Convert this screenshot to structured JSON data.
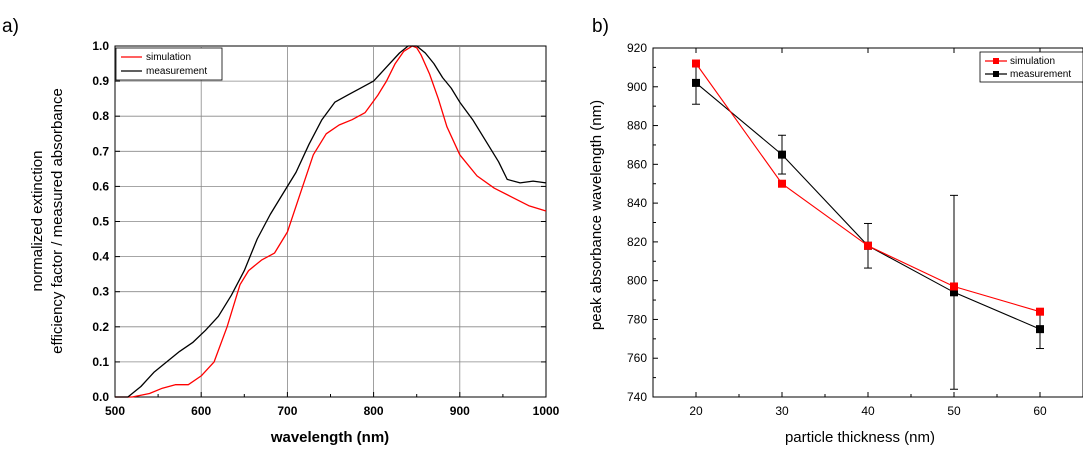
{
  "chart_data": [
    {
      "panel_label": "a)",
      "type": "line",
      "xlabel": "wavelength (nm)",
      "ylabel_lines": [
        "normalized extinction",
        "efficiency factor / measured absorbance"
      ],
      "xlim": [
        500,
        1000
      ],
      "ylim": [
        0.0,
        1.0
      ],
      "xticks": [
        "500",
        "600",
        "700",
        "800",
        "900",
        "1000"
      ],
      "yticks": [
        "0.0",
        "0.1",
        "0.2",
        "0.3",
        "0.4",
        "0.5",
        "0.6",
        "0.7",
        "0.8",
        "0.9",
        "1.0"
      ],
      "grid": true,
      "legend_position": "top-left",
      "series": [
        {
          "name": "simulation",
          "color": "#ff0000",
          "x": [
            500,
            520,
            540,
            555,
            570,
            585,
            600,
            615,
            630,
            645,
            655,
            670,
            685,
            700,
            715,
            730,
            745,
            760,
            775,
            790,
            805,
            815,
            825,
            835,
            845,
            850,
            855,
            865,
            875,
            885,
            900,
            920,
            940,
            960,
            980,
            1000
          ],
          "y": [
            0.0,
            0.0,
            0.01,
            0.025,
            0.035,
            0.035,
            0.06,
            0.1,
            0.2,
            0.32,
            0.36,
            0.39,
            0.41,
            0.47,
            0.58,
            0.69,
            0.75,
            0.775,
            0.79,
            0.81,
            0.86,
            0.9,
            0.95,
            0.985,
            1.0,
            0.995,
            0.975,
            0.92,
            0.85,
            0.77,
            0.69,
            0.63,
            0.595,
            0.57,
            0.545,
            0.53
          ]
        },
        {
          "name": "measurement",
          "color": "#000000",
          "x": [
            500,
            515,
            530,
            545,
            560,
            575,
            590,
            605,
            620,
            635,
            650,
            665,
            680,
            695,
            710,
            725,
            740,
            755,
            770,
            785,
            800,
            815,
            830,
            840,
            850,
            860,
            870,
            880,
            890,
            900,
            915,
            930,
            945,
            955,
            970,
            985,
            1000
          ],
          "y": [
            0.0,
            0.0,
            0.03,
            0.07,
            0.1,
            0.13,
            0.155,
            0.19,
            0.23,
            0.29,
            0.36,
            0.45,
            0.52,
            0.58,
            0.64,
            0.72,
            0.79,
            0.84,
            0.86,
            0.88,
            0.9,
            0.94,
            0.98,
            1.0,
            1.0,
            0.98,
            0.95,
            0.91,
            0.88,
            0.84,
            0.79,
            0.73,
            0.67,
            0.62,
            0.61,
            0.615,
            0.61
          ]
        }
      ]
    },
    {
      "panel_label": "b)",
      "type": "line",
      "xlabel": "particle thickness (nm)",
      "ylabel": "peak absorbance wavelength (nm)",
      "xlim": [
        15,
        65
      ],
      "ylim": [
        740,
        920
      ],
      "xticks": [
        "20",
        "30",
        "40",
        "50",
        "60"
      ],
      "yticks": [
        "740",
        "760",
        "780",
        "800",
        "820",
        "840",
        "860",
        "880",
        "900",
        "920"
      ],
      "grid": false,
      "legend_position": "top-right",
      "series": [
        {
          "name": "simulation",
          "color": "#ff0000",
          "marker": "square",
          "x": [
            20,
            30,
            40,
            50,
            60
          ],
          "y": [
            912,
            850,
            818,
            797,
            784
          ]
        },
        {
          "name": "measurement",
          "color": "#000000",
          "marker": "square",
          "x": [
            20,
            30,
            40,
            50,
            60
          ],
          "y": [
            902,
            865,
            818,
            794,
            775
          ],
          "error": [
            11,
            10,
            11.5,
            50,
            10
          ]
        }
      ]
    }
  ]
}
